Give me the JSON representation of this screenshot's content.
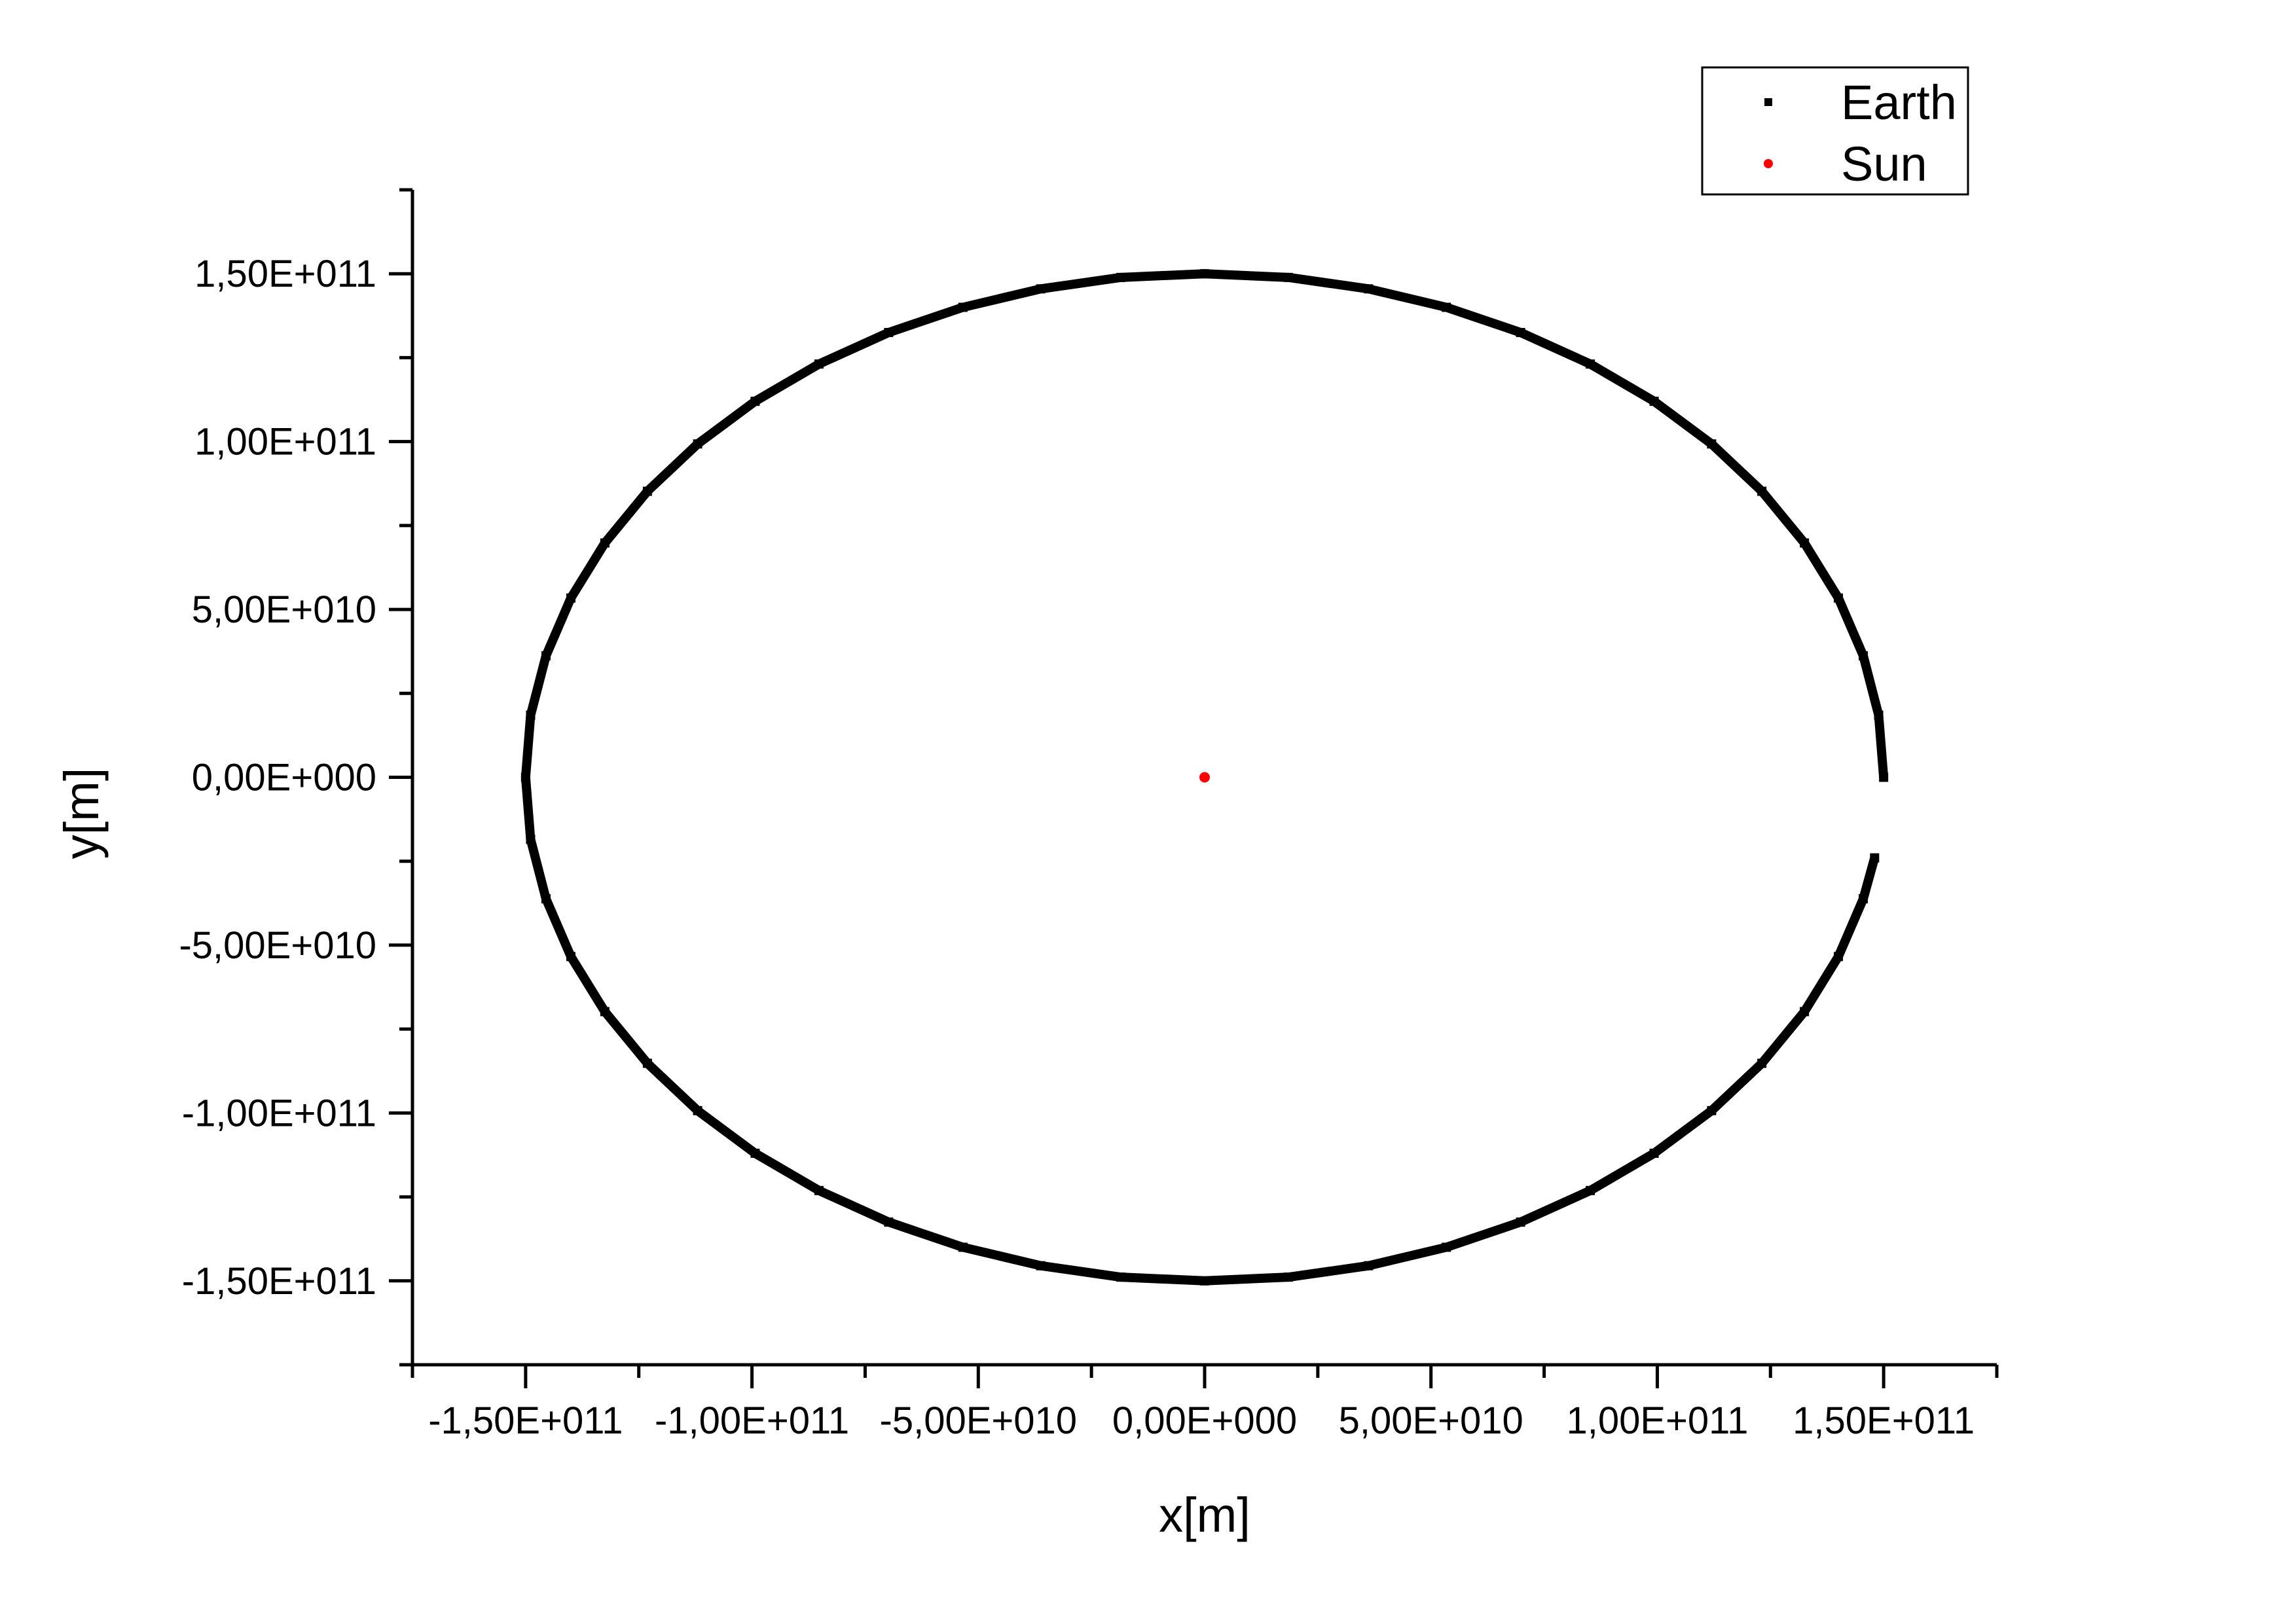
{
  "chart_data": {
    "type": "scatter",
    "title": "",
    "xlabel": "x[m]",
    "ylabel": "y[m]",
    "xlim": [
      -175000000000.0,
      175000000000.0
    ],
    "ylim": [
      -175000000000.0,
      175000000000.0
    ],
    "x_ticks": [
      {
        "value": -150000000000.0,
        "label": "-1,50E+011"
      },
      {
        "value": -100000000000.0,
        "label": "-1,00E+011"
      },
      {
        "value": -50000000000.0,
        "label": "-5,00E+010"
      },
      {
        "value": 0,
        "label": "0,00E+000"
      },
      {
        "value": 50000000000.0,
        "label": "5,00E+010"
      },
      {
        "value": 100000000000.0,
        "label": "1,00E+011"
      },
      {
        "value": 150000000000.0,
        "label": "1,50E+011"
      }
    ],
    "y_ticks": [
      {
        "value": 150000000000.0,
        "label": "1,50E+011"
      },
      {
        "value": 100000000000.0,
        "label": "1,00E+011"
      },
      {
        "value": 50000000000.0,
        "label": "5,00E+010"
      },
      {
        "value": 0,
        "label": "0,00E+000"
      },
      {
        "value": -50000000000.0,
        "label": "-5,00E+010"
      },
      {
        "value": -100000000000.0,
        "label": "-1,00E+011"
      },
      {
        "value": -150000000000.0,
        "label": "-1,50E+011"
      }
    ],
    "grid": false,
    "legend": {
      "position": "top-right",
      "entries": [
        "Earth",
        "Sun"
      ]
    },
    "series": [
      {
        "name": "Earth",
        "color": "#000000",
        "marker": "square",
        "x": [
          150000000000.0,
          148900000000.0,
          145500000000.0,
          140000000000.0,
          132500000000.0,
          123100000000.0,
          112000000000.0,
          99300000000.0,
          85200000000.0,
          69800000000.0,
          53400000000.0,
          36200000000.0,
          18500000000.0,
          0,
          -18500000000.0,
          -36200000000.0,
          -53400000000.0,
          -69800000000.0,
          -85200000000.0,
          -99300000000.0,
          -112000000000.0,
          -123100000000.0,
          -132500000000.0,
          -140000000000.0,
          -145500000000.0,
          -148900000000.0,
          -150000000000.0,
          -148900000000.0,
          -145500000000.0,
          -140000000000.0,
          -132500000000.0,
          -123100000000.0,
          -112000000000.0,
          -99300000000.0,
          -85200000000.0,
          -69800000000.0,
          -53400000000.0,
          -36200000000.0,
          -18500000000.0,
          0,
          18500000000.0,
          36200000000.0,
          53400000000.0,
          69800000000.0,
          85200000000.0,
          99300000000.0,
          112000000000.0,
          123100000000.0,
          132500000000.0,
          140000000000.0,
          145500000000.0,
          148000000000.0
        ],
        "y": [
          0,
          18500000000.0,
          36200000000.0,
          53400000000.0,
          69800000000.0,
          85200000000.0,
          99300000000.0,
          112000000000.0,
          123100000000.0,
          132500000000.0,
          140000000000.0,
          145500000000.0,
          148900000000.0,
          150000000000.0,
          148900000000.0,
          145500000000.0,
          140000000000.0,
          132500000000.0,
          123100000000.0,
          112000000000.0,
          99300000000.0,
          85200000000.0,
          69800000000.0,
          53400000000.0,
          36200000000.0,
          18500000000.0,
          0,
          -18500000000.0,
          -36200000000.0,
          -53400000000.0,
          -69800000000.0,
          -85200000000.0,
          -99300000000.0,
          -112000000000.0,
          -123100000000.0,
          -132500000000.0,
          -140000000000.0,
          -145500000000.0,
          -148900000000.0,
          -150000000000.0,
          -148900000000.0,
          -145500000000.0,
          -140000000000.0,
          -132500000000.0,
          -123100000000.0,
          -112000000000.0,
          -99300000000.0,
          -85200000000.0,
          -69800000000.0,
          -53400000000.0,
          -36200000000.0,
          -24000000000.0
        ]
      },
      {
        "name": "Sun",
        "color": "#ff0000",
        "marker": "circle",
        "x": [
          0
        ],
        "y": [
          0
        ]
      }
    ]
  }
}
